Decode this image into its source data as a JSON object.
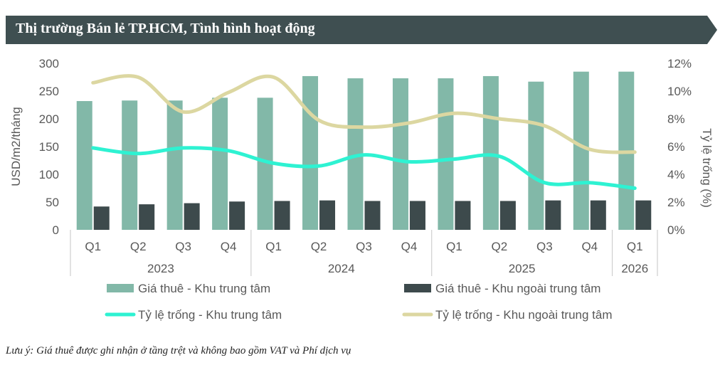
{
  "header": {
    "title": "Thị trường Bán lẻ TP.HCM, Tình hình hoạt động"
  },
  "footnote": "Lưu ý: Giá thuê được ghi nhận ở tầng trệt và không bao gồm VAT và Phí dịch vụ",
  "colors": {
    "banner": "#3f4f51",
    "cbd_rent": "#82b8a8",
    "non_cbd_rent": "#3d4a4c",
    "cbd_vacancy": "#2ef2d2",
    "non_cbd_vacancy": "#dcd7a1",
    "axis_text": "#595959",
    "separator": "#cfcfcf"
  },
  "chart_data": {
    "type": "bar",
    "categories": [
      "Q1",
      "Q2",
      "Q3",
      "Q4",
      "Q1",
      "Q2",
      "Q3",
      "Q4",
      "Q1",
      "Q2",
      "Q3",
      "Q4",
      "Q1"
    ],
    "year_groups": [
      {
        "label": "2023",
        "start": 0,
        "count": 4
      },
      {
        "label": "2024",
        "start": 4,
        "count": 4
      },
      {
        "label": "2025",
        "start": 8,
        "count": 4
      },
      {
        "label": "2026",
        "start": 12,
        "count": 1
      }
    ],
    "ylabel": "USD/m2/tháng",
    "y2label": "Tỷ lệ trống (%)",
    "ylim": [
      0,
      300
    ],
    "y2lim": [
      0,
      12
    ],
    "yticks": [
      "0",
      "50",
      "100",
      "150",
      "200",
      "250",
      "300"
    ],
    "y2ticks": [
      "0%",
      "2%",
      "4%",
      "6%",
      "8%",
      "10%",
      "12%"
    ],
    "series": [
      {
        "name": "Giá thuê - Khu trung tâm",
        "kind": "bar",
        "axis": "left",
        "values": [
          232,
          233,
          233,
          238,
          238,
          277,
          273,
          273,
          273,
          277,
          267,
          285,
          285
        ]
      },
      {
        "name": "Giá thuê - Khu ngoài trung tâm",
        "kind": "bar",
        "axis": "left",
        "values": [
          42,
          46,
          48,
          51,
          52,
          53,
          52,
          52,
          52,
          52,
          53,
          53,
          53
        ]
      },
      {
        "name": "Tỷ lệ trống - Khu trung tâm",
        "kind": "line",
        "axis": "right",
        "values": [
          5.9,
          5.5,
          5.9,
          5.7,
          4.8,
          4.6,
          5.4,
          4.9,
          5.1,
          5.3,
          3.4,
          3.4,
          3.0
        ]
      },
      {
        "name": "Tỷ lệ trống - Khu ngoài trung tâm",
        "kind": "line",
        "axis": "right",
        "values": [
          10.6,
          11.0,
          8.5,
          9.9,
          11.0,
          7.9,
          7.4,
          7.7,
          8.4,
          8.0,
          7.5,
          5.8,
          5.6
        ]
      }
    ],
    "legend": [
      {
        "label": "Giá thuê - Khu trung tâm",
        "kind": "bar",
        "color_key": "cbd_rent"
      },
      {
        "label": "Giá thuê - Khu ngoài trung tâm",
        "kind": "bar",
        "color_key": "non_cbd_rent"
      },
      {
        "label": "Tỷ lệ trống - Khu trung tâm",
        "kind": "line",
        "color_key": "cbd_vacancy"
      },
      {
        "label": "Tỷ lệ trống - Khu ngoài trung tâm",
        "kind": "line",
        "color_key": "non_cbd_vacancy"
      }
    ],
    "legend_position": "bottom"
  }
}
